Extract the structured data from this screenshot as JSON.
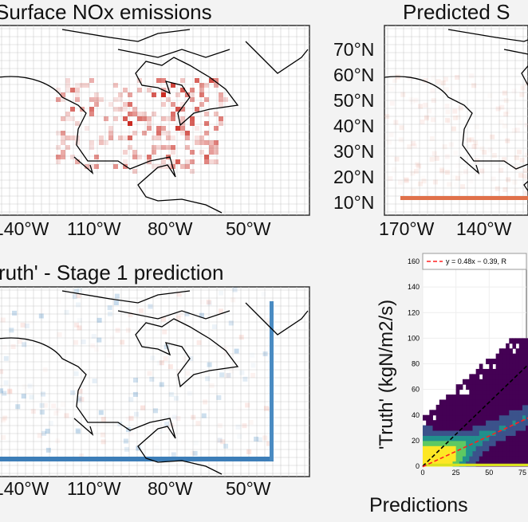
{
  "chart_data": [
    {
      "type": "heatmap",
      "title": "Surface NOx emissions",
      "colormap": "Reds",
      "x_ticks": [
        "140°W",
        "110°W",
        "80°W",
        "50°W"
      ],
      "grid": true
    },
    {
      "type": "heatmap",
      "title": "Predicted S",
      "colormap": "Reds",
      "x_ticks": [
        "170°W",
        "140°W"
      ],
      "y_ticks": [
        "70°N",
        "60°N",
        "50°N",
        "40°N",
        "30°N",
        "20°N",
        "10°N"
      ],
      "grid": true
    },
    {
      "type": "heatmap",
      "title": "ruth' - Stage 1 prediction",
      "colormap": "RdBu",
      "x_ticks": [
        "140°W",
        "110°W",
        "80°W",
        "50°W"
      ],
      "grid": true
    },
    {
      "type": "heatmap",
      "subtype": "density scatter",
      "colormap": "viridis",
      "xlabel": "Predictions",
      "ylabel": "'Truth' (kgN/m2/s)",
      "x_ticks": [
        "0",
        "25",
        "50",
        "75"
      ],
      "y_ticks": [
        "0",
        "20",
        "40",
        "60",
        "80",
        "100",
        "120",
        "140",
        "160"
      ],
      "xlim": [
        0,
        80
      ],
      "ylim": [
        0,
        165
      ],
      "legend": {
        "position": "top",
        "entries": [
          "y = 0.48x − 0.39, R"
        ]
      },
      "fit": {
        "slope": 0.48,
        "intercept": -0.39,
        "color": "#ff2020"
      },
      "identity_line": {
        "slope": 1,
        "intercept": 0,
        "color": "#000000"
      },
      "grid": true
    }
  ]
}
